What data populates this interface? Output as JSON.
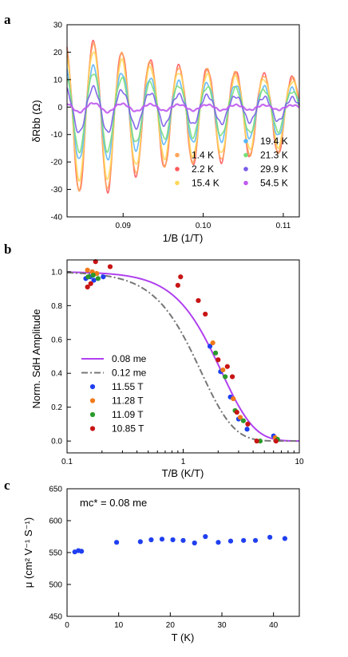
{
  "colors": {
    "axis": "#000000",
    "curve_008": "#b040f0",
    "curve_012": "#777777",
    "T_1_4": "#ffa55a",
    "T_2_2": "#ff5a5a",
    "T_15_4": "#ffd75a",
    "T_19_4": "#5ab4ff",
    "T_21_3": "#78e078",
    "T_29_9": "#7a5ae8",
    "T_54_5": "#c05af0",
    "b_11_55": "#1f3ff0",
    "b_11_28": "#f07a1a",
    "b_11_09": "#2a9a2a",
    "b_10_85": "#c81414",
    "c_points": "#1f3ff0"
  },
  "chart_data": [
    {
      "panel": "a",
      "type": "line",
      "xlabel": "1/B (1/T)",
      "ylabel": "δRbb (Ω)",
      "xlim": [
        0.083,
        0.112
      ],
      "ylim": [
        -40,
        30
      ],
      "xticks": [
        "0.09",
        "0.10",
        "0.11"
      ],
      "xtick_values": [
        0.09,
        0.1,
        0.11
      ],
      "yticks": [
        "-40",
        "-30",
        "-20",
        "-10",
        "0",
        "10",
        "20",
        "30"
      ],
      "ytick_values": [
        -40,
        -30,
        -20,
        -10,
        0,
        10,
        20,
        30
      ],
      "oscillation": {
        "first_max_x": 0.0863,
        "period": 0.00355,
        "maxima_2_2K": [
          24.0,
          20.0,
          17.0,
          15.0,
          14.0,
          13.0,
          12.0,
          11.0,
          10.0
        ],
        "minima_2_2K": [
          -31.0,
          -25.0,
          -22.0,
          -21.0,
          -20.0,
          -18.0,
          -17.0,
          -16.0,
          -15.0
        ]
      },
      "series": [
        {
          "name": "1.4 K",
          "color_key": "T_1_4",
          "scale": 0.97
        },
        {
          "name": "2.2 K",
          "color_key": "T_2_2",
          "scale": 1.0
        },
        {
          "name": "15.4 K",
          "color_key": "T_15_4",
          "scale": 0.85
        },
        {
          "name": "19.4 K",
          "color_key": "T_19_4",
          "scale": 0.62
        },
        {
          "name": "21.3 K",
          "color_key": "T_21_3",
          "scale": 0.52
        },
        {
          "name": "29.9 K",
          "color_key": "T_29_9",
          "scale": 0.3
        },
        {
          "name": "54.5 K",
          "color_key": "T_54_5",
          "scale": 0.06
        }
      ],
      "legend_position": "bottom-right"
    },
    {
      "panel": "b",
      "type": "scatter",
      "xlabel": "T/B (K/T)",
      "ylabel": "Norm. SdH Amplitude",
      "xscale": "log",
      "xlim": [
        0.1,
        10
      ],
      "ylim": [
        -0.07,
        1.07
      ],
      "xticks": [
        "0.1",
        "1",
        "10"
      ],
      "xtick_values": [
        0.1,
        1,
        10
      ],
      "yticks": [
        "0.0",
        "0.2",
        "0.4",
        "0.6",
        "0.8",
        "1.0"
      ],
      "ytick_values": [
        0.0,
        0.2,
        0.4,
        0.6,
        0.8,
        1.0
      ],
      "fits": [
        {
          "name": "0.08 me",
          "mass": 0.08,
          "style": "solid",
          "color_key": "curve_008"
        },
        {
          "name": "0.12 me",
          "mass": 0.12,
          "style": "dash-dot",
          "color_key": "curve_012"
        }
      ],
      "series": [
        {
          "name": "11.55 T",
          "color_key": "b_11_55",
          "points": [
            [
              0.145,
              0.96
            ],
            [
              0.158,
              0.97
            ],
            [
              0.17,
              0.95
            ],
            [
              0.205,
              0.97
            ],
            [
              1.7,
              0.56
            ],
            [
              2.1,
              0.41
            ],
            [
              2.55,
              0.26
            ],
            [
              3.0,
              0.13
            ],
            [
              3.55,
              0.07
            ],
            [
              6.0,
              0.03
            ]
          ]
        },
        {
          "name": "11.28 T",
          "color_key": "b_11_28",
          "points": [
            [
              0.15,
              1.01
            ],
            [
              0.165,
              1.0
            ],
            [
              0.18,
              0.99
            ],
            [
              1.8,
              0.58
            ],
            [
              2.2,
              0.42
            ],
            [
              2.7,
              0.25
            ],
            [
              3.1,
              0.14
            ],
            [
              6.2,
              0.02
            ]
          ]
        },
        {
          "name": "11.09 T",
          "color_key": "b_11_09",
          "points": [
            [
              0.152,
              0.97
            ],
            [
              0.168,
              0.98
            ],
            [
              0.185,
              0.96
            ],
            [
              1.9,
              0.52
            ],
            [
              2.3,
              0.38
            ],
            [
              2.8,
              0.18
            ],
            [
              3.3,
              0.12
            ],
            [
              4.6,
              0.0
            ],
            [
              6.5,
              0.01
            ]
          ]
        },
        {
          "name": "10.85 T",
          "color_key": "b_10_85",
          "points": [
            [
              0.15,
              0.91
            ],
            [
              0.16,
              0.93
            ],
            [
              0.176,
              1.06
            ],
            [
              0.235,
              1.03
            ],
            [
              0.9,
              0.92
            ],
            [
              0.95,
              0.97
            ],
            [
              1.35,
              0.83
            ],
            [
              1.55,
              0.75
            ],
            [
              2.0,
              0.48
            ],
            [
              2.4,
              0.44
            ],
            [
              2.65,
              0.38
            ],
            [
              2.9,
              0.17
            ],
            [
              3.6,
              0.1
            ],
            [
              4.3,
              0.0
            ],
            [
              6.3,
              0.0
            ]
          ]
        }
      ],
      "legend_position": "bottom-left"
    },
    {
      "panel": "c",
      "type": "scatter",
      "xlabel": "T (K)",
      "ylabel": "μ (cm² V⁻¹ S⁻¹)",
      "annotation": "mc* = 0.08 me",
      "xlim": [
        0,
        45
      ],
      "ylim": [
        450,
        650
      ],
      "xticks": [
        "0",
        "10",
        "20",
        "30",
        "40"
      ],
      "xtick_values": [
        0,
        10,
        20,
        30,
        40
      ],
      "yticks": [
        "450",
        "500",
        "550",
        "600",
        "650"
      ],
      "ytick_values": [
        450,
        500,
        550,
        600,
        650
      ],
      "series": [
        {
          "color_key": "c_points",
          "points": [
            [
              1.5,
              551
            ],
            [
              2.2,
              553
            ],
            [
              2.8,
              552
            ],
            [
              9.6,
              566
            ],
            [
              14.2,
              567
            ],
            [
              16.3,
              570
            ],
            [
              18.4,
              571
            ],
            [
              20.5,
              570
            ],
            [
              22.5,
              569
            ],
            [
              24.7,
              565
            ],
            [
              26.8,
              575
            ],
            [
              29.3,
              566
            ],
            [
              31.7,
              568
            ],
            [
              34.2,
              569
            ],
            [
              36.5,
              569
            ],
            [
              39.3,
              574
            ],
            [
              42.2,
              572
            ]
          ]
        }
      ]
    }
  ],
  "labels": {
    "panel_a": "a",
    "panel_b": "b",
    "panel_c": "c"
  }
}
